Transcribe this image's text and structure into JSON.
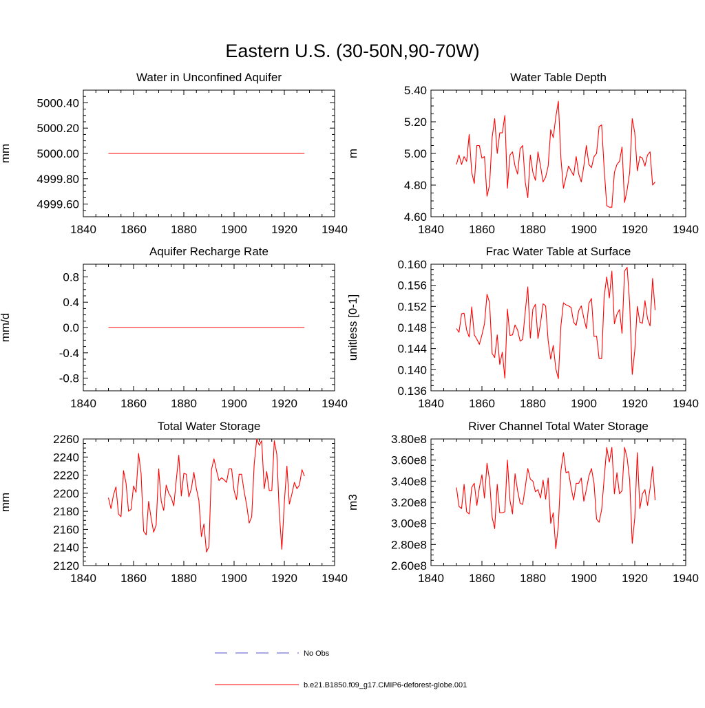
{
  "figure_title": "Eastern U.S. (30-50N,90-70W)",
  "legend": {
    "no_obs_label": "No Obs",
    "no_obs_color": "#5050c8",
    "model_label": "b.e21.B1850.f09_g17.CMIP6-deforest-globe.001",
    "model_color": "#ff0000"
  },
  "chart_data": [
    {
      "type": "line",
      "title": "Water in Unconfined Aquifer",
      "ylabel": "mm",
      "xlim": [
        1840,
        1940
      ],
      "ylim": [
        4999.5,
        5000.5
      ],
      "xticks": [
        1840,
        1860,
        1880,
        1900,
        1920,
        1940
      ],
      "xtick_labels": [
        "1840",
        "1860",
        "1880",
        "1900",
        "1920",
        "1940"
      ],
      "yticks": [
        4999.6,
        4999.8,
        5000.0,
        5000.2,
        5000.4
      ],
      "ytick_labels": [
        "4999.60",
        "4999.80",
        "5000.00",
        "5000.20",
        "5000.40"
      ],
      "series": [
        {
          "name": "b.e21.B1850.f09_g17.CMIP6-deforest-globe.001",
          "x_start": 1850,
          "values": [
            5000,
            5000,
            5000,
            5000,
            5000,
            5000,
            5000,
            5000,
            5000,
            5000,
            5000,
            5000,
            5000,
            5000,
            5000,
            5000,
            5000,
            5000,
            5000,
            5000,
            5000,
            5000,
            5000,
            5000,
            5000,
            5000,
            5000,
            5000,
            5000,
            5000,
            5000,
            5000,
            5000,
            5000,
            5000,
            5000,
            5000,
            5000,
            5000,
            5000,
            5000,
            5000,
            5000,
            5000,
            5000,
            5000,
            5000,
            5000,
            5000,
            5000,
            5000,
            5000,
            5000,
            5000,
            5000,
            5000,
            5000,
            5000,
            5000,
            5000,
            5000,
            5000,
            5000,
            5000,
            5000,
            5000,
            5000,
            5000,
            5000,
            5000,
            5000,
            5000,
            5000,
            5000,
            5000,
            5000,
            5000,
            5000,
            5000
          ]
        }
      ]
    },
    {
      "type": "line",
      "title": "Water Table Depth",
      "ylabel": "m",
      "xlim": [
        1840,
        1940
      ],
      "ylim": [
        4.6,
        5.4
      ],
      "xticks": [
        1840,
        1860,
        1880,
        1900,
        1920,
        1940
      ],
      "xtick_labels": [
        "1840",
        "1860",
        "1880",
        "1900",
        "1920",
        "1940"
      ],
      "yticks": [
        4.6,
        4.8,
        5.0,
        5.2,
        5.4
      ],
      "ytick_labels": [
        "4.60",
        "4.80",
        "5.00",
        "5.20",
        "5.40"
      ],
      "series": [
        {
          "name": "b.e21.B1850.f09_g17.CMIP6-deforest-globe.001",
          "x_start": 1850,
          "values": [
            4.93,
            4.99,
            4.93,
            4.98,
            4.95,
            5.12,
            4.88,
            4.81,
            5.05,
            5.05,
            4.97,
            4.98,
            4.73,
            4.8,
            5.1,
            5.22,
            5.0,
            5.13,
            5.13,
            5.24,
            4.78,
            4.99,
            5.01,
            4.92,
            4.87,
            5.03,
            5.05,
            4.82,
            4.72,
            4.99,
            4.88,
            4.83,
            5.01,
            4.92,
            4.82,
            4.85,
            4.92,
            5.15,
            5.1,
            5.23,
            5.33,
            4.97,
            4.78,
            4.85,
            4.92,
            4.89,
            4.86,
            4.98,
            4.87,
            4.82,
            4.92,
            5.05,
            4.93,
            4.91,
            4.98,
            5.0,
            5.17,
            5.18,
            4.9,
            4.67,
            4.66,
            4.66,
            4.88,
            4.93,
            4.95,
            5.04,
            4.69,
            4.77,
            4.88,
            5.22,
            5.13,
            4.89,
            4.98,
            4.97,
            4.92,
            4.99,
            5.01,
            4.8,
            4.82
          ]
        }
      ]
    },
    {
      "type": "line",
      "title": "Aquifer Recharge Rate",
      "ylabel": "mm/d",
      "xlim": [
        1840,
        1940
      ],
      "ylim": [
        -1.0,
        1.0
      ],
      "xticks": [
        1840,
        1860,
        1880,
        1900,
        1920,
        1940
      ],
      "xtick_labels": [
        "1840",
        "1860",
        "1880",
        "1900",
        "1920",
        "1940"
      ],
      "yticks": [
        -0.8,
        -0.4,
        0.0,
        0.4,
        0.8
      ],
      "ytick_labels": [
        "-0.8",
        "-0.4",
        "0.0",
        "0.4",
        "0.8"
      ],
      "series": [
        {
          "name": "b.e21.B1850.f09_g17.CMIP6-deforest-globe.001",
          "x_start": 1850,
          "values": [
            0,
            0,
            0,
            0,
            0,
            0,
            0,
            0,
            0,
            0,
            0,
            0,
            0,
            0,
            0,
            0,
            0,
            0,
            0,
            0,
            0,
            0,
            0,
            0,
            0,
            0,
            0,
            0,
            0,
            0,
            0,
            0,
            0,
            0,
            0,
            0,
            0,
            0,
            0,
            0,
            0,
            0,
            0,
            0,
            0,
            0,
            0,
            0,
            0,
            0,
            0,
            0,
            0,
            0,
            0,
            0,
            0,
            0,
            0,
            0,
            0,
            0,
            0,
            0,
            0,
            0,
            0,
            0,
            0,
            0,
            0,
            0,
            0,
            0,
            0,
            0,
            0,
            0,
            0
          ]
        }
      ]
    },
    {
      "type": "line",
      "title": "Frac Water Table at Surface",
      "ylabel": "unitless [0-1]",
      "xlim": [
        1840,
        1940
      ],
      "ylim": [
        0.136,
        0.16
      ],
      "xticks": [
        1840,
        1860,
        1880,
        1900,
        1920,
        1940
      ],
      "xtick_labels": [
        "1840",
        "1860",
        "1880",
        "1900",
        "1920",
        "1940"
      ],
      "yticks": [
        0.136,
        0.14,
        0.144,
        0.148,
        0.152,
        0.156,
        0.16
      ],
      "ytick_labels": [
        "0.136",
        "0.140",
        "0.144",
        "0.148",
        "0.152",
        "0.156",
        "0.160"
      ],
      "series": [
        {
          "name": "b.e21.B1850.f09_g17.CMIP6-deforest-globe.001",
          "x_start": 1850,
          "values": [
            0.1478,
            0.1471,
            0.1506,
            0.1507,
            0.1475,
            0.1462,
            0.1519,
            0.1466,
            0.1458,
            0.1448,
            0.1466,
            0.1487,
            0.1543,
            0.1527,
            0.1431,
            0.1423,
            0.1466,
            0.141,
            0.1433,
            0.1384,
            0.1515,
            0.1465,
            0.1466,
            0.1485,
            0.1475,
            0.1454,
            0.1458,
            0.151,
            0.1557,
            0.146,
            0.1515,
            0.1524,
            0.1459,
            0.1488,
            0.1525,
            0.1521,
            0.1455,
            0.142,
            0.1446,
            0.1402,
            0.1383,
            0.1483,
            0.1527,
            0.1523,
            0.1521,
            0.1518,
            0.149,
            0.1484,
            0.1512,
            0.1521,
            0.1498,
            0.1478,
            0.1526,
            0.1535,
            0.1463,
            0.1464,
            0.1421,
            0.1421,
            0.154,
            0.1576,
            0.1536,
            0.1587,
            0.1487,
            0.1505,
            0.1514,
            0.1469,
            0.1587,
            0.1594,
            0.1525,
            0.1391,
            0.1436,
            0.152,
            0.149,
            0.1488,
            0.1531,
            0.1497,
            0.1483,
            0.1573,
            0.1513
          ]
        }
      ]
    },
    {
      "type": "line",
      "title": "Total Water Storage",
      "ylabel": "mm",
      "xlim": [
        1840,
        1940
      ],
      "ylim": [
        2120,
        2260
      ],
      "xticks": [
        1840,
        1860,
        1880,
        1900,
        1920,
        1940
      ],
      "xtick_labels": [
        "1840",
        "1860",
        "1880",
        "1900",
        "1920",
        "1940"
      ],
      "yticks": [
        2120,
        2140,
        2160,
        2180,
        2200,
        2220,
        2240,
        2260
      ],
      "ytick_labels": [
        "2120",
        "2140",
        "2160",
        "2180",
        "2200",
        "2220",
        "2240",
        "2260"
      ],
      "series": [
        {
          "name": "b.e21.B1850.f09_g17.CMIP6-deforest-globe.001",
          "x_start": 1850,
          "values": [
            2195,
            2183,
            2198,
            2207,
            2177,
            2174,
            2225,
            2211,
            2180,
            2182,
            2208,
            2201,
            2244,
            2222,
            2158,
            2154,
            2191,
            2172,
            2157,
            2165,
            2227,
            2191,
            2181,
            2209,
            2200,
            2195,
            2186,
            2215,
            2242,
            2197,
            2222,
            2221,
            2196,
            2205,
            2223,
            2205,
            2192,
            2152,
            2166,
            2135,
            2141,
            2226,
            2238,
            2225,
            2214,
            2217,
            2215,
            2212,
            2227,
            2227,
            2203,
            2193,
            2221,
            2221,
            2202,
            2187,
            2167,
            2174,
            2232,
            2260,
            2253,
            2258,
            2205,
            2224,
            2203,
            2203,
            2258,
            2243,
            2178,
            2138,
            2190,
            2230,
            2188,
            2199,
            2212,
            2205,
            2209,
            2226,
            2219
          ]
        }
      ]
    },
    {
      "type": "line",
      "title": "River Channel Total Water Storage",
      "ylabel": "m3",
      "xlim": [
        1840,
        1940
      ],
      "ylim": [
        260000000.0,
        380000000.0
      ],
      "xticks": [
        1840,
        1860,
        1880,
        1900,
        1920,
        1940
      ],
      "xtick_labels": [
        "1840",
        "1860",
        "1880",
        "1900",
        "1920",
        "1940"
      ],
      "yticks": [
        260000000.0,
        280000000.0,
        300000000.0,
        320000000.0,
        340000000.0,
        360000000.0,
        380000000.0
      ],
      "ytick_labels": [
        "2.60e8",
        "2.80e8",
        "3.00e8",
        "3.20e8",
        "3.40e8",
        "3.60e8",
        "3.80e8"
      ],
      "series": [
        {
          "name": "b.e21.B1850.f09_g17.CMIP6-deforest-globe.001",
          "x_start": 1850,
          "values": [
            334000000.0,
            316000000.0,
            314000000.0,
            337000000.0,
            311000000.0,
            309000000.0,
            334000000.0,
            338000000.0,
            317000000.0,
            334000000.0,
            346000000.0,
            324000000.0,
            357000000.0,
            341000000.0,
            306000000.0,
            295000000.0,
            337000000.0,
            310000000.0,
            310000000.0,
            311000000.0,
            360000000.0,
            322000000.0,
            309000000.0,
            347000000.0,
            331000000.0,
            319000000.0,
            318000000.0,
            334000000.0,
            352000000.0,
            342000000.0,
            340000000.0,
            330000000.0,
            332000000.0,
            324000000.0,
            341000000.0,
            323000000.0,
            343000000.0,
            300000000.0,
            310000000.0,
            276000000.0,
            298000000.0,
            350000000.0,
            367000000.0,
            348000000.0,
            349000000.0,
            334000000.0,
            322000000.0,
            338000000.0,
            338000000.0,
            343000000.0,
            321000000.0,
            332000000.0,
            345000000.0,
            352000000.0,
            338000000.0,
            304000000.0,
            301000000.0,
            313000000.0,
            343000000.0,
            372000000.0,
            358000000.0,
            372000000.0,
            328000000.0,
            348000000.0,
            328000000.0,
            331000000.0,
            372000000.0,
            362000000.0,
            341000000.0,
            281000000.0,
            305000000.0,
            367000000.0,
            314000000.0,
            328000000.0,
            332000000.0,
            317000000.0,
            333000000.0,
            354000000.0,
            322000000.0
          ]
        }
      ]
    }
  ]
}
